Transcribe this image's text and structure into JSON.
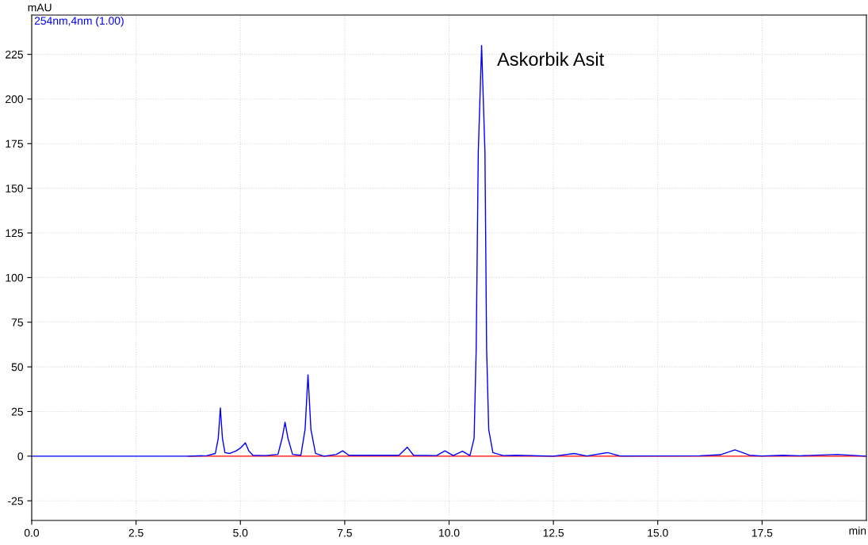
{
  "chart_data": {
    "type": "line",
    "xlabel": "min",
    "ylabel": "mAU",
    "series": [
      {
        "name": "254nm,4nm (1.00)",
        "color": "#0000ff",
        "x": [
          0,
          3.75,
          4.2,
          4.4,
          4.47,
          4.52,
          4.57,
          4.63,
          4.75,
          4.9,
          5.0,
          5.12,
          5.2,
          5.3,
          5.6,
          5.9,
          6.0,
          6.07,
          6.14,
          6.25,
          6.45,
          6.55,
          6.62,
          6.69,
          6.8,
          7.0,
          7.3,
          7.45,
          7.6,
          8.3,
          8.8,
          9.0,
          9.15,
          9.7,
          9.9,
          10.1,
          10.32,
          10.5,
          10.6,
          10.65,
          10.7,
          10.78,
          10.86,
          10.9,
          10.95,
          11.05,
          11.3,
          11.6,
          12.5,
          13.0,
          13.3,
          13.8,
          14.1,
          16.0,
          16.5,
          16.85,
          17.2,
          17.5,
          18.0,
          18.4,
          19.3,
          20
        ],
        "values": [
          0,
          0,
          0.3,
          1.5,
          10,
          27,
          10,
          2,
          1.5,
          3,
          4.5,
          7.5,
          3,
          0.5,
          0.3,
          1,
          10,
          19,
          10,
          1,
          0.5,
          15,
          45.5,
          15,
          1.5,
          0,
          1,
          3,
          0.5,
          0.5,
          0.5,
          5,
          0.5,
          0.3,
          3,
          0.3,
          2.8,
          0.3,
          10,
          60,
          170,
          230,
          170,
          60,
          15,
          2,
          0.3,
          0.5,
          0,
          1.5,
          0.1,
          2,
          0.1,
          0.2,
          0.8,
          3.5,
          0.5,
          0.1,
          0.5,
          0.2,
          1,
          0
        ]
      },
      {
        "color": "#ff0000",
        "x": [
          3.75,
          20
        ],
        "values": [
          0,
          0
        ]
      }
    ],
    "xlim": [
      0,
      20
    ],
    "ylim": [
      -36,
      247
    ],
    "xticks": [
      {
        "value": 0,
        "label": "0.0"
      },
      2.5,
      {
        "value": 5,
        "label": "5.0"
      },
      7.5,
      {
        "value": 10,
        "label": "10.0"
      },
      12.5,
      {
        "value": 15,
        "label": "15.0"
      },
      17.5
    ],
    "yticks": [
      -25,
      0,
      25,
      50,
      75,
      100,
      125,
      150,
      175,
      200,
      225
    ],
    "grid": true,
    "legend": "top left",
    "marker": "none",
    "line_style": "solid",
    "annotations": [
      {
        "text": "Askorbik Asit",
        "x": 10.78,
        "y": 230
      }
    ]
  }
}
